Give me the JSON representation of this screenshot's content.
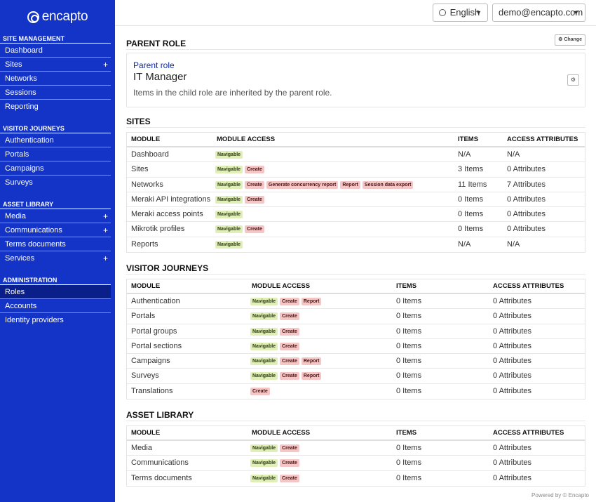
{
  "brand": "encapto",
  "sidebar": {
    "sections": [
      {
        "title": "SITE MANAGEMENT",
        "items": [
          {
            "label": "Dashboard",
            "expand": false,
            "active": false
          },
          {
            "label": "Sites",
            "expand": true,
            "active": false
          },
          {
            "label": "Networks",
            "expand": false,
            "active": false
          },
          {
            "label": "Sessions",
            "expand": false,
            "active": false
          },
          {
            "label": "Reporting",
            "expand": false,
            "active": false
          }
        ]
      },
      {
        "title": "VISITOR JOURNEYS",
        "items": [
          {
            "label": "Authentication",
            "expand": false,
            "active": false
          },
          {
            "label": "Portals",
            "expand": false,
            "active": false
          },
          {
            "label": "Campaigns",
            "expand": false,
            "active": false
          },
          {
            "label": "Surveys",
            "expand": false,
            "active": false
          }
        ]
      },
      {
        "title": "ASSET LIBRARY",
        "items": [
          {
            "label": "Media",
            "expand": true,
            "active": false
          },
          {
            "label": "Communications",
            "expand": true,
            "active": false
          },
          {
            "label": "Terms documents",
            "expand": false,
            "active": false
          },
          {
            "label": "Services",
            "expand": true,
            "active": false
          }
        ]
      },
      {
        "title": "ADMINISTRATION",
        "items": [
          {
            "label": "Roles",
            "expand": false,
            "active": true
          },
          {
            "label": "Accounts",
            "expand": false,
            "active": false
          },
          {
            "label": "Identity providers",
            "expand": false,
            "active": false
          }
        ]
      }
    ]
  },
  "topbar": {
    "language": "English",
    "user": "demo@encapto.com"
  },
  "parent_role": {
    "section_title": "PARENT ROLE",
    "change_label": "Change",
    "label": "Parent role",
    "name": "IT Manager",
    "description": "Items in the child role are inherited by the parent role."
  },
  "tables": [
    {
      "title": "SITES",
      "headers": {
        "module": "MODULE",
        "access": "MODULE ACCESS",
        "items": "ITEMS",
        "attributes": "ACCESS ATTRIBUTES"
      },
      "rows": [
        {
          "module": "Dashboard",
          "badges": [
            "Navigable"
          ],
          "items": "N/A",
          "attributes": "N/A"
        },
        {
          "module": "Sites",
          "badges": [
            "Navigable",
            "Create"
          ],
          "items": "3 Items",
          "attributes": "0 Attributes"
        },
        {
          "module": "Networks",
          "badges": [
            "Navigable",
            "Create",
            "Generate concurrency report",
            "Report",
            "Session data export"
          ],
          "items": "11 Items",
          "attributes": "7 Attributes"
        },
        {
          "module": "Meraki API integrations",
          "badges": [
            "Navigable",
            "Create"
          ],
          "items": "0 Items",
          "attributes": "0 Attributes"
        },
        {
          "module": "Meraki access points",
          "badges": [
            "Navigable"
          ],
          "items": "0 Items",
          "attributes": "0 Attributes"
        },
        {
          "module": "Mikrotik profiles",
          "badges": [
            "Navigable",
            "Create"
          ],
          "items": "0 Items",
          "attributes": "0 Attributes"
        },
        {
          "module": "Reports",
          "badges": [
            "Navigable"
          ],
          "items": "N/A",
          "attributes": "N/A"
        }
      ]
    },
    {
      "title": "VISITOR JOURNEYS",
      "headers": {
        "module": "MODULE",
        "access": "MODULE ACCESS",
        "items": "ITEMS",
        "attributes": "ACCESS ATTRIBUTES"
      },
      "rows": [
        {
          "module": "Authentication",
          "badges": [
            "Navigable",
            "Create",
            "Report"
          ],
          "items": "0 Items",
          "attributes": "0 Attributes"
        },
        {
          "module": "Portals",
          "badges": [
            "Navigable",
            "Create"
          ],
          "items": "0 Items",
          "attributes": "0 Attributes"
        },
        {
          "module": "Portal groups",
          "badges": [
            "Navigable",
            "Create"
          ],
          "items": "0 Items",
          "attributes": "0 Attributes"
        },
        {
          "module": "Portal sections",
          "badges": [
            "Navigable",
            "Create"
          ],
          "items": "0 Items",
          "attributes": "0 Attributes"
        },
        {
          "module": "Campaigns",
          "badges": [
            "Navigable",
            "Create",
            "Report"
          ],
          "items": "0 Items",
          "attributes": "0 Attributes"
        },
        {
          "module": "Surveys",
          "badges": [
            "Navigable",
            "Create",
            "Report"
          ],
          "items": "0 Items",
          "attributes": "0 Attributes"
        },
        {
          "module": "Translations",
          "badges": [
            "Create"
          ],
          "items": "0 Items",
          "attributes": "0 Attributes"
        }
      ]
    },
    {
      "title": "ASSET LIBRARY",
      "headers": {
        "module": "MODULE",
        "access": "MODULE ACCESS",
        "items": "ITEMS",
        "attributes": "ACCESS ATTRIBUTES"
      },
      "rows": [
        {
          "module": "Media",
          "badges": [
            "Navigable",
            "Create"
          ],
          "items": "0 Items",
          "attributes": "0 Attributes"
        },
        {
          "module": "Communications",
          "badges": [
            "Navigable",
            "Create"
          ],
          "items": "0 Items",
          "attributes": "0 Attributes"
        },
        {
          "module": "Terms documents",
          "badges": [
            "Navigable",
            "Create"
          ],
          "items": "0 Items",
          "attributes": "0 Attributes"
        }
      ]
    }
  ],
  "footer": "Powered by © Encapto",
  "colors": {
    "sidebar": "#1334c7",
    "navigable_badge": "#e0efb8",
    "action_badge": "#f4c6c6",
    "link": "#0c2ca8"
  }
}
